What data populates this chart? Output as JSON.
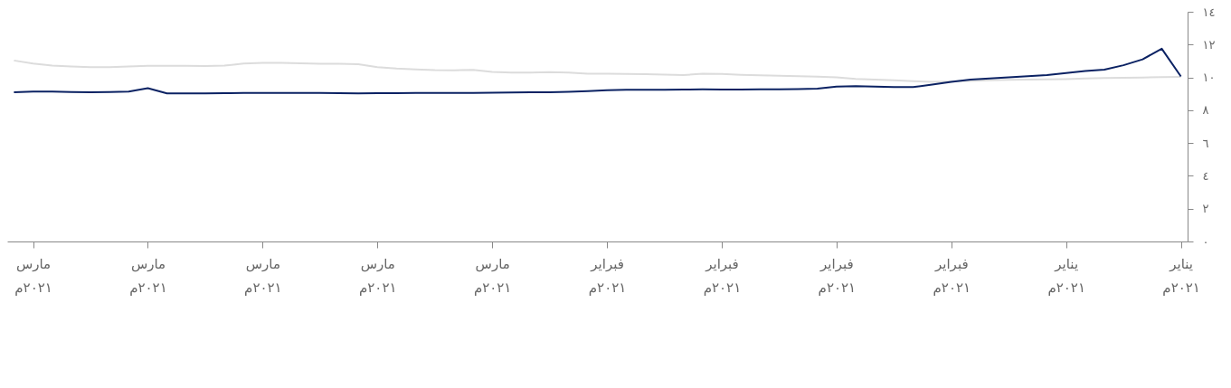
{
  "chart_data": {
    "type": "line",
    "categories": [
      null,
      "مارس\n٢٠٢١م",
      null,
      null,
      null,
      null,
      null,
      "مارس\n٢٠٢١م",
      null,
      null,
      null,
      null,
      null,
      "مارس\n٢٠٢١م",
      null,
      null,
      null,
      null,
      null,
      "مارس\n٢٠٢١م",
      null,
      null,
      null,
      null,
      null,
      "مارس\n٢٠٢١م",
      null,
      null,
      null,
      null,
      null,
      "فبراير\n٢٠٢١م",
      null,
      null,
      null,
      null,
      null,
      "فبراير\n٢٠٢١م",
      null,
      null,
      null,
      null,
      null,
      "فبراير\n٢٠٢١م",
      null,
      null,
      null,
      null,
      null,
      "فبراير\n٢٠٢١م",
      null,
      null,
      null,
      null,
      null,
      "يناير\n٢٠٢١م",
      null,
      null,
      null,
      null,
      null,
      "يناير\n٢٠٢١م"
    ],
    "ylim": [
      0,
      14
    ],
    "yticks": [
      {
        "value": 0,
        "label": "٠"
      },
      {
        "value": 2,
        "label": "٢"
      },
      {
        "value": 4,
        "label": "٤"
      },
      {
        "value": 6,
        "label": "٦"
      },
      {
        "value": 8,
        "label": "٨"
      },
      {
        "value": 10,
        "label": "١٠"
      },
      {
        "value": 12,
        "label": "١٢"
      },
      {
        "value": 14,
        "label": "١٤"
      }
    ],
    "grid": false,
    "marker": "none",
    "line_style": "solid",
    "series": [
      {
        "color": "#dcdcdc",
        "values": [
          11.03,
          10.85,
          10.72,
          10.67,
          10.63,
          10.62,
          10.66,
          10.7,
          10.71,
          10.7,
          10.69,
          10.72,
          10.84,
          10.88,
          10.88,
          10.86,
          10.83,
          10.83,
          10.8,
          10.63,
          10.54,
          10.49,
          10.44,
          10.43,
          10.46,
          10.33,
          10.29,
          10.3,
          10.32,
          10.3,
          10.23,
          10.23,
          10.21,
          10.19,
          10.17,
          10.14,
          10.22,
          10.21,
          10.16,
          10.13,
          10.1,
          10.07,
          10.05,
          10.01,
          9.91,
          9.86,
          9.82,
          9.77,
          9.73,
          9.75,
          9.79,
          9.83,
          9.85,
          9.86,
          9.88,
          9.9,
          9.93,
          9.96,
          9.98,
          9.99,
          10.02,
          10.03
        ]
      },
      {
        "color": "#0b2263",
        "values": [
          9.09,
          9.13,
          9.13,
          9.11,
          9.09,
          9.11,
          9.13,
          9.34,
          9.03,
          9.03,
          9.03,
          9.04,
          9.05,
          9.06,
          9.06,
          9.06,
          9.06,
          9.04,
          9.03,
          9.04,
          9.04,
          9.05,
          9.05,
          9.06,
          9.06,
          9.07,
          9.08,
          9.09,
          9.1,
          9.12,
          9.16,
          9.22,
          9.25,
          9.25,
          9.25,
          9.26,
          9.27,
          9.26,
          9.26,
          9.27,
          9.28,
          9.29,
          9.32,
          9.44,
          9.46,
          9.44,
          9.41,
          9.41,
          9.56,
          9.73,
          9.87,
          9.94,
          10.0,
          10.07,
          10.14,
          10.27,
          10.39,
          10.47,
          10.74,
          11.1,
          11.75,
          10.06
        ]
      }
    ]
  }
}
